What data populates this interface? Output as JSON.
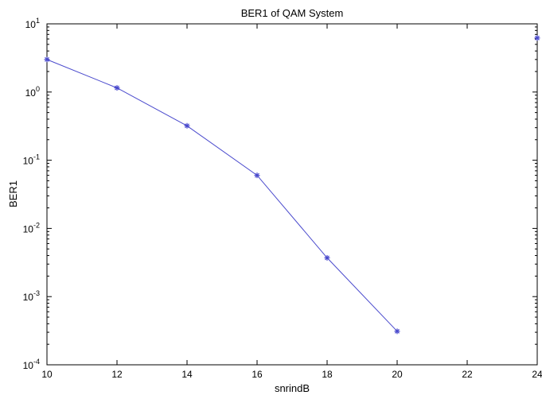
{
  "chart_data": {
    "type": "line",
    "title": "BER1 of QAM System",
    "xlabel": "snrindB",
    "ylabel": "BER1",
    "xlim": [
      10,
      24
    ],
    "ylim": [
      0.0001,
      10
    ],
    "yscale": "log",
    "grid": false,
    "xticks": [
      10,
      12,
      14,
      16,
      18,
      20,
      22,
      24
    ],
    "xtick_labels": [
      "10",
      "12",
      "14",
      "16",
      "18",
      "20",
      "22",
      "24"
    ],
    "yticks": [
      0.0001,
      0.001,
      0.01,
      0.1,
      1,
      10
    ],
    "ytick_labels": [
      {
        "base": "10",
        "exp": "-4"
      },
      {
        "base": "10",
        "exp": "-3"
      },
      {
        "base": "10",
        "exp": "-2"
      },
      {
        "base": "10",
        "exp": "-1"
      },
      {
        "base": "10",
        "exp": "0"
      },
      {
        "base": "10",
        "exp": "1"
      }
    ],
    "series": [
      {
        "color": "#4a4acd",
        "marker": "asterisk",
        "x": [
          10,
          12,
          14,
          16,
          18,
          20
        ],
        "y": [
          3.0,
          1.15,
          0.32,
          0.06,
          0.0037,
          0.00031
        ]
      },
      {
        "color": "#4a4acd",
        "marker": "asterisk",
        "line": false,
        "x": [
          24
        ],
        "y": [
          6.2
        ]
      }
    ]
  }
}
